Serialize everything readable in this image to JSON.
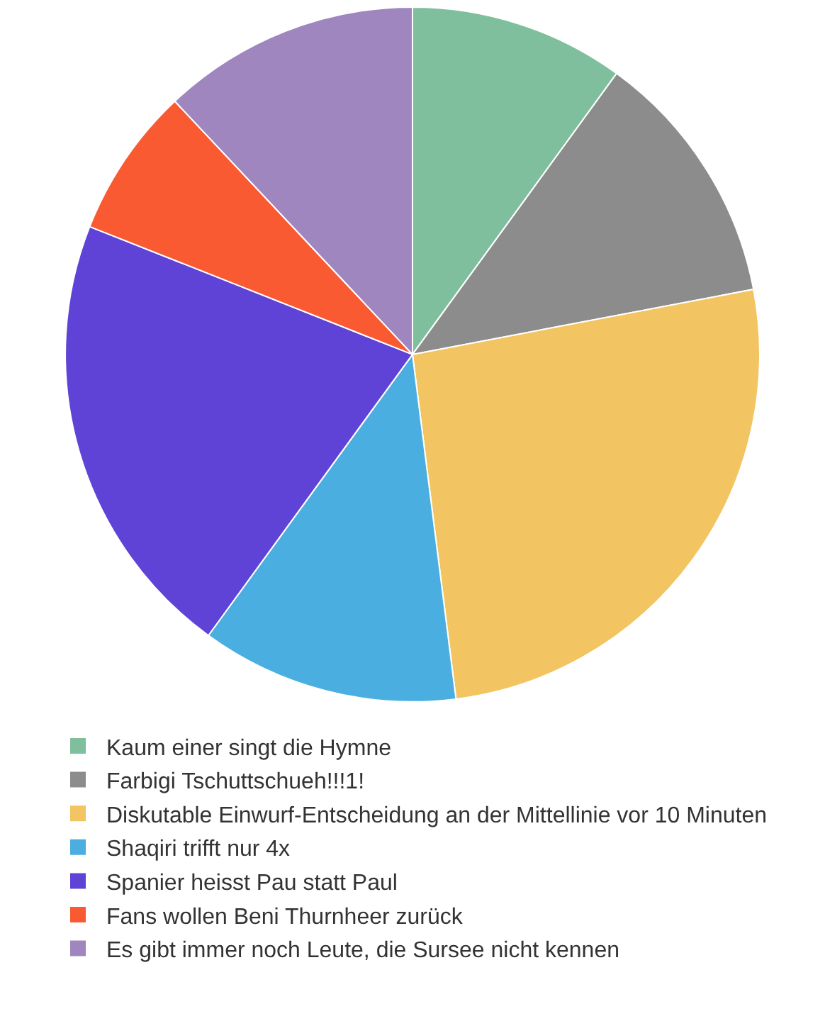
{
  "chart_data": {
    "type": "pie",
    "categories": [
      "Kaum einer singt die Hymne",
      "Farbigi Tschuttschueh!!!1!",
      "Diskutable Einwurf-Entscheidung an der Mittellinie vor 10 Minuten",
      "Shaqiri trifft nur 4x",
      "Spanier heisst Pau statt Paul",
      "Fans wollen Beni Thurnheer zurück",
      "Es gibt immer noch Leute, die Sursee nicht kennen"
    ],
    "values": [
      10,
      12,
      26,
      12,
      21,
      7,
      12
    ],
    "colors": [
      "#7fbf9e",
      "#8c8c8c",
      "#f2c462",
      "#4aafe0",
      "#5f43d6",
      "#fa5a32",
      "#9f86bf"
    ],
    "legend": "bottom"
  }
}
